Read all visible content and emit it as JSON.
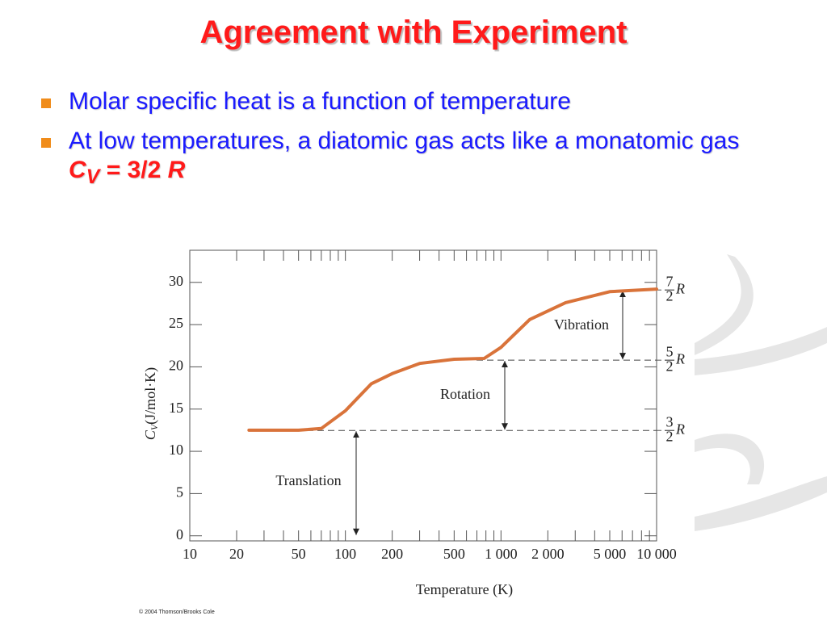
{
  "title": "Agreement with Experiment",
  "bullets": [
    {
      "text": "Molar specific heat is a function of temperature"
    },
    {
      "text": "At low temperatures, a diatomic gas acts like a monatomic gas",
      "formula": {
        "symbol": "C",
        "subscript": "V",
        "rest": "= 3/2",
        "unit": "R"
      }
    }
  ],
  "copyright": "© 2004 Thomson/Brooks Cole",
  "chart_data": {
    "type": "line",
    "xlabel": "Temperature (K)",
    "ylabel": {
      "symbol": "C",
      "subscript": "V",
      "rest": "(J/mol·K)"
    },
    "xscale": "log",
    "xlim": [
      10,
      10000
    ],
    "ylim": [
      -0.6,
      33.8
    ],
    "xticks": [
      10,
      20,
      50,
      100,
      200,
      500,
      {
        "value": 1000,
        "label": "1 000"
      },
      {
        "value": 2000,
        "label": "2 000"
      },
      {
        "value": 5000,
        "label": "5 000"
      },
      {
        "value": 10000,
        "label": "10 000"
      }
    ],
    "xminorticks": [
      30,
      40,
      60,
      70,
      80,
      90,
      300,
      400,
      600,
      700,
      800,
      900,
      3000,
      4000,
      6000,
      7000,
      8000,
      9000
    ],
    "yticks": [
      0,
      5,
      10,
      15,
      20,
      25,
      30
    ],
    "right_labels": [
      {
        "value": 12.47,
        "numerator": "3",
        "denominator": "2",
        "symbol": "R"
      },
      {
        "value": 20.79,
        "numerator": "5",
        "denominator": "2",
        "symbol": "R"
      },
      {
        "value": 29.1,
        "numerator": "7",
        "denominator": "2",
        "symbol": "R"
      }
    ],
    "annotations": [
      "Translation",
      "Rotation",
      "Vibration"
    ],
    "series": [
      {
        "color": "#d9733a",
        "x": [
          24,
          50,
          70,
          100,
          147,
          200,
          300,
          500,
          780,
          1000,
          1530,
          2600,
          5000,
          10000
        ],
        "values": [
          12.5,
          12.5,
          12.7,
          14.8,
          18,
          19.2,
          20.4,
          20.9,
          21,
          22.3,
          25.6,
          27.6,
          28.9,
          29.2
        ]
      }
    ]
  }
}
